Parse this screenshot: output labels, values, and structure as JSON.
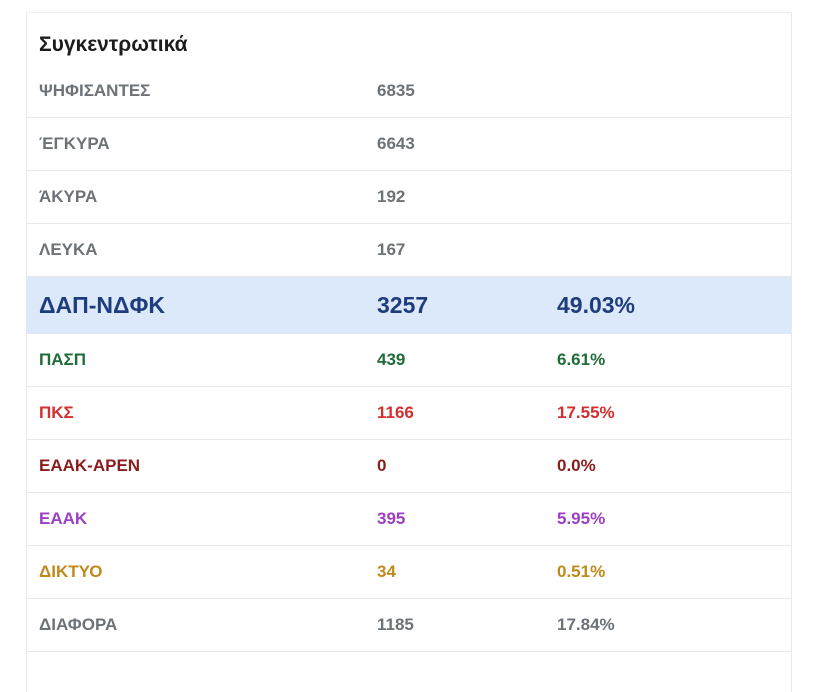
{
  "panel": {
    "title": "Συγκεντρωτικά"
  },
  "stats": [
    {
      "label": "ΨΗΦΙΣΑΝΤΕΣ",
      "value": "6835"
    },
    {
      "label": "ΈΓΚΥΡΑ",
      "value": "6643"
    },
    {
      "label": "ΆΚΥΡΑ",
      "value": "192"
    },
    {
      "label": "ΛΕΥΚΑ",
      "value": "167"
    }
  ],
  "parties": [
    {
      "name": "ΔΑΠ-ΝΔΦΚ",
      "votes": "3257",
      "percent": "49.03%",
      "color": "#1f3c7d",
      "highlighted": true
    },
    {
      "name": "ΠΑΣΠ",
      "votes": "439",
      "percent": "6.61%",
      "color": "#1f6b3a"
    },
    {
      "name": "ΠΚΣ",
      "votes": "1166",
      "percent": "17.55%",
      "color": "#d32f2f"
    },
    {
      "name": "ΕΑΑΚ-ΑΡΕΝ",
      "votes": "0",
      "percent": "0.0%",
      "color": "#8b1c1c"
    },
    {
      "name": "ΕΑΑΚ",
      "votes": "395",
      "percent": "5.95%",
      "color": "#9c3fc4"
    },
    {
      "name": "ΔΙΚΤΥΟ",
      "votes": "34",
      "percent": "0.51%",
      "color": "#c08a1a"
    },
    {
      "name": "ΔΙΑΦΟΡΑ",
      "votes": "1185",
      "percent": "17.84%",
      "color": "#6d7278"
    }
  ]
}
